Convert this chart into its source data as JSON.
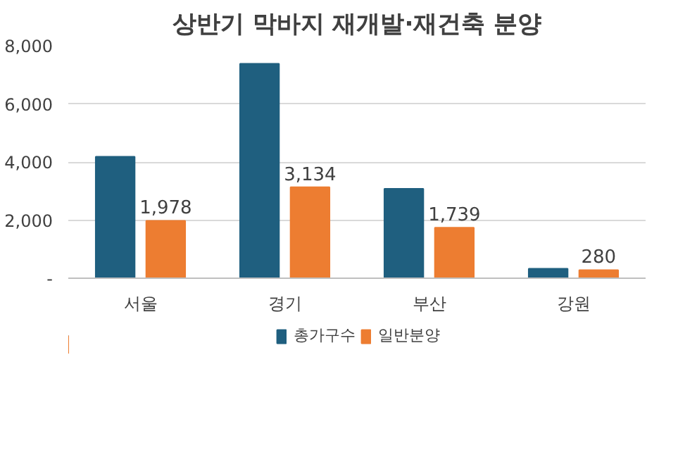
{
  "chart_data": {
    "type": "bar",
    "title": "상반기 막바지 재개발·재건축 분양",
    "categories": [
      "서울",
      "경기",
      "부산",
      "강원"
    ],
    "series": [
      {
        "name": "총가구수",
        "color": "#1f5f7f",
        "values": [
          4180,
          7380,
          3080,
          330
        ]
      },
      {
        "name": "일반분양",
        "color": "#ed7d31",
        "values": [
          1978,
          3134,
          1739,
          280
        ],
        "value_labels": [
          "1,978",
          "3,134",
          "1,739",
          "280"
        ]
      }
    ],
    "ylim": [
      0,
      8000
    ],
    "yticks": [
      {
        "value": 0,
        "label": "-"
      },
      {
        "value": 2000,
        "label": "2,000"
      },
      {
        "value": 4000,
        "label": "4,000"
      },
      {
        "value": 6000,
        "label": "6,000"
      },
      {
        "value": 8000,
        "label": "8,000"
      }
    ],
    "grid": "y",
    "legend": "bottom"
  }
}
